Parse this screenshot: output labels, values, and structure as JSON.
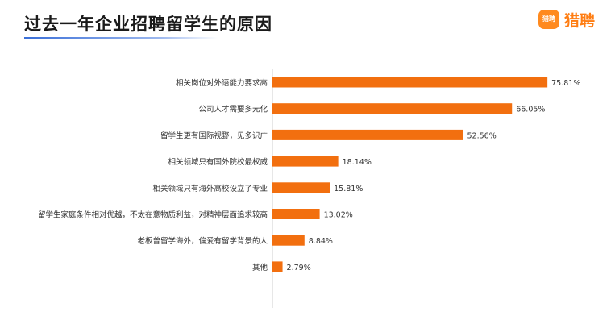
{
  "header": {
    "title": "过去一年企业招聘留学生的原因",
    "logo_badge": "猎聘",
    "logo_text": "猎聘"
  },
  "colors": {
    "bar": "#f26f0f",
    "title_rule": "#3a6fd8",
    "brand": "#ff7d12"
  },
  "chart_data": {
    "type": "bar",
    "orientation": "horizontal",
    "categories": [
      "相关岗位对外语能力要求高",
      "公司人才需要多元化",
      "留学生更有国际视野，见多识广",
      "相关领域只有国外院校最权威",
      "相关领域只有海外高校设立了专业",
      "留学生家庭条件相对优越，不太在意物质利益，对精神层面追求较高",
      "老板曾留学海外，偏爱有留学背景的人",
      "其他"
    ],
    "values": [
      75.81,
      66.05,
      52.56,
      18.14,
      15.81,
      13.02,
      8.84,
      2.79
    ],
    "labels": [
      "75.81%",
      "66.05%",
      "52.56%",
      "18.14%",
      "15.81%",
      "13.02%",
      "8.84%",
      "2.79%"
    ],
    "xlim": [
      0,
      100
    ],
    "grid": false
  }
}
